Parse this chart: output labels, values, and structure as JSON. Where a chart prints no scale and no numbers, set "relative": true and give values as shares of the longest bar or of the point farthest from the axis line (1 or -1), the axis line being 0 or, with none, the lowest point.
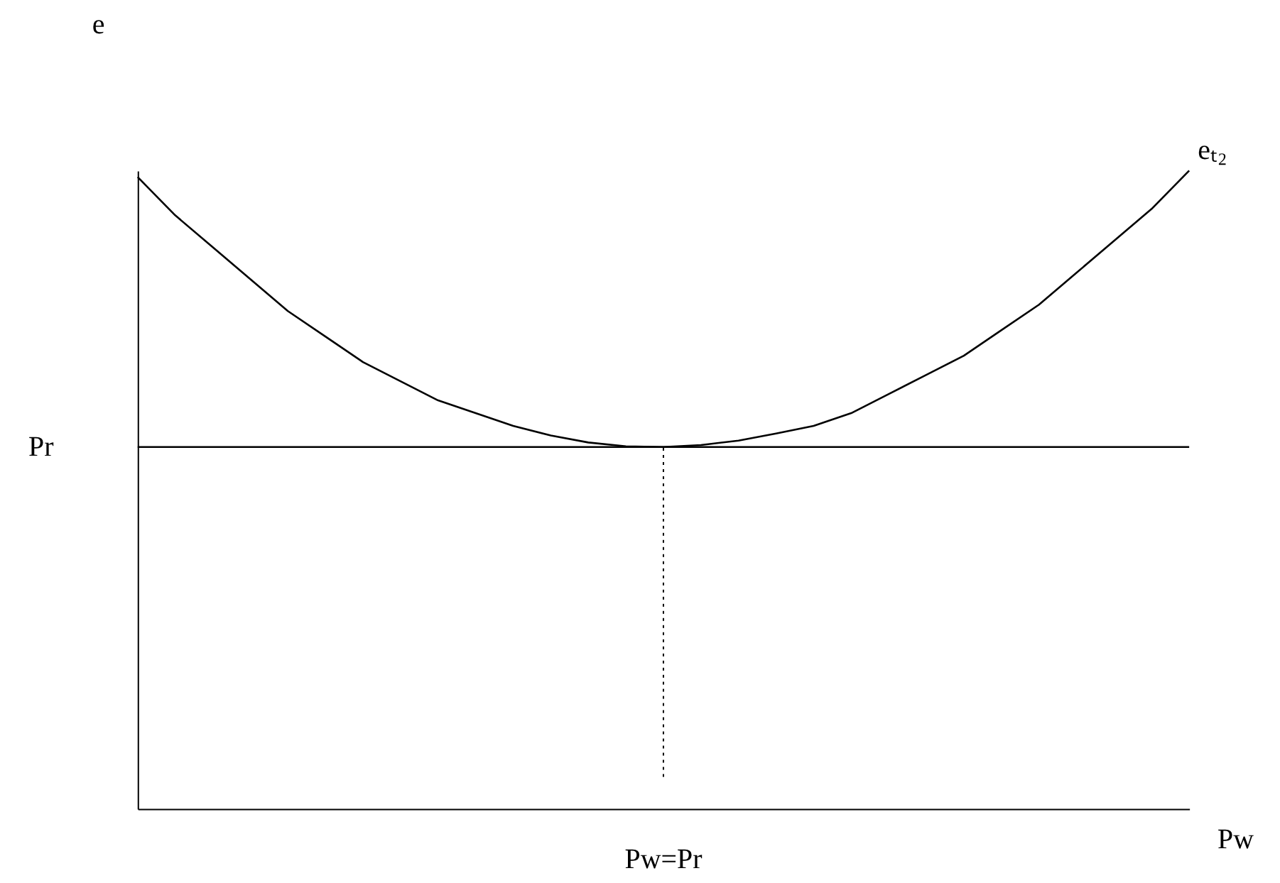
{
  "chart_data": {
    "type": "line",
    "relative": true,
    "xlabel": "Pw",
    "ylabel": "e",
    "tick_labels": false,
    "grid": false,
    "line_style": "solid",
    "categories": [
      null,
      null,
      null,
      null,
      null,
      null,
      null,
      null,
      null,
      null,
      null,
      null,
      null,
      null,
      null,
      null,
      null,
      null,
      null,
      null,
      null,
      null,
      null,
      null,
      null,
      null,
      null,
      null,
      null
    ],
    "series": [
      {
        "name": "eₜ₂",
        "color": "#000000",
        "values": [
          0.99,
          0.93,
          0.88,
          0.83,
          0.78,
          0.74,
          0.7,
          0.67,
          0.64,
          0.62,
          0.6,
          0.585,
          0.574,
          0.568,
          0.567,
          0.57,
          0.577,
          0.588,
          0.6,
          0.62,
          0.65,
          0.68,
          0.71,
          0.75,
          0.79,
          0.84,
          0.89,
          0.94,
          1.0
        ]
      }
    ],
    "annotations": [
      "Pw=Pr"
    ],
    "ref_lines": [
      {
        "axis": "y",
        "value": 0.567,
        "label": "Pr",
        "color": "#000000",
        "line_style": "solid"
      }
    ]
  }
}
